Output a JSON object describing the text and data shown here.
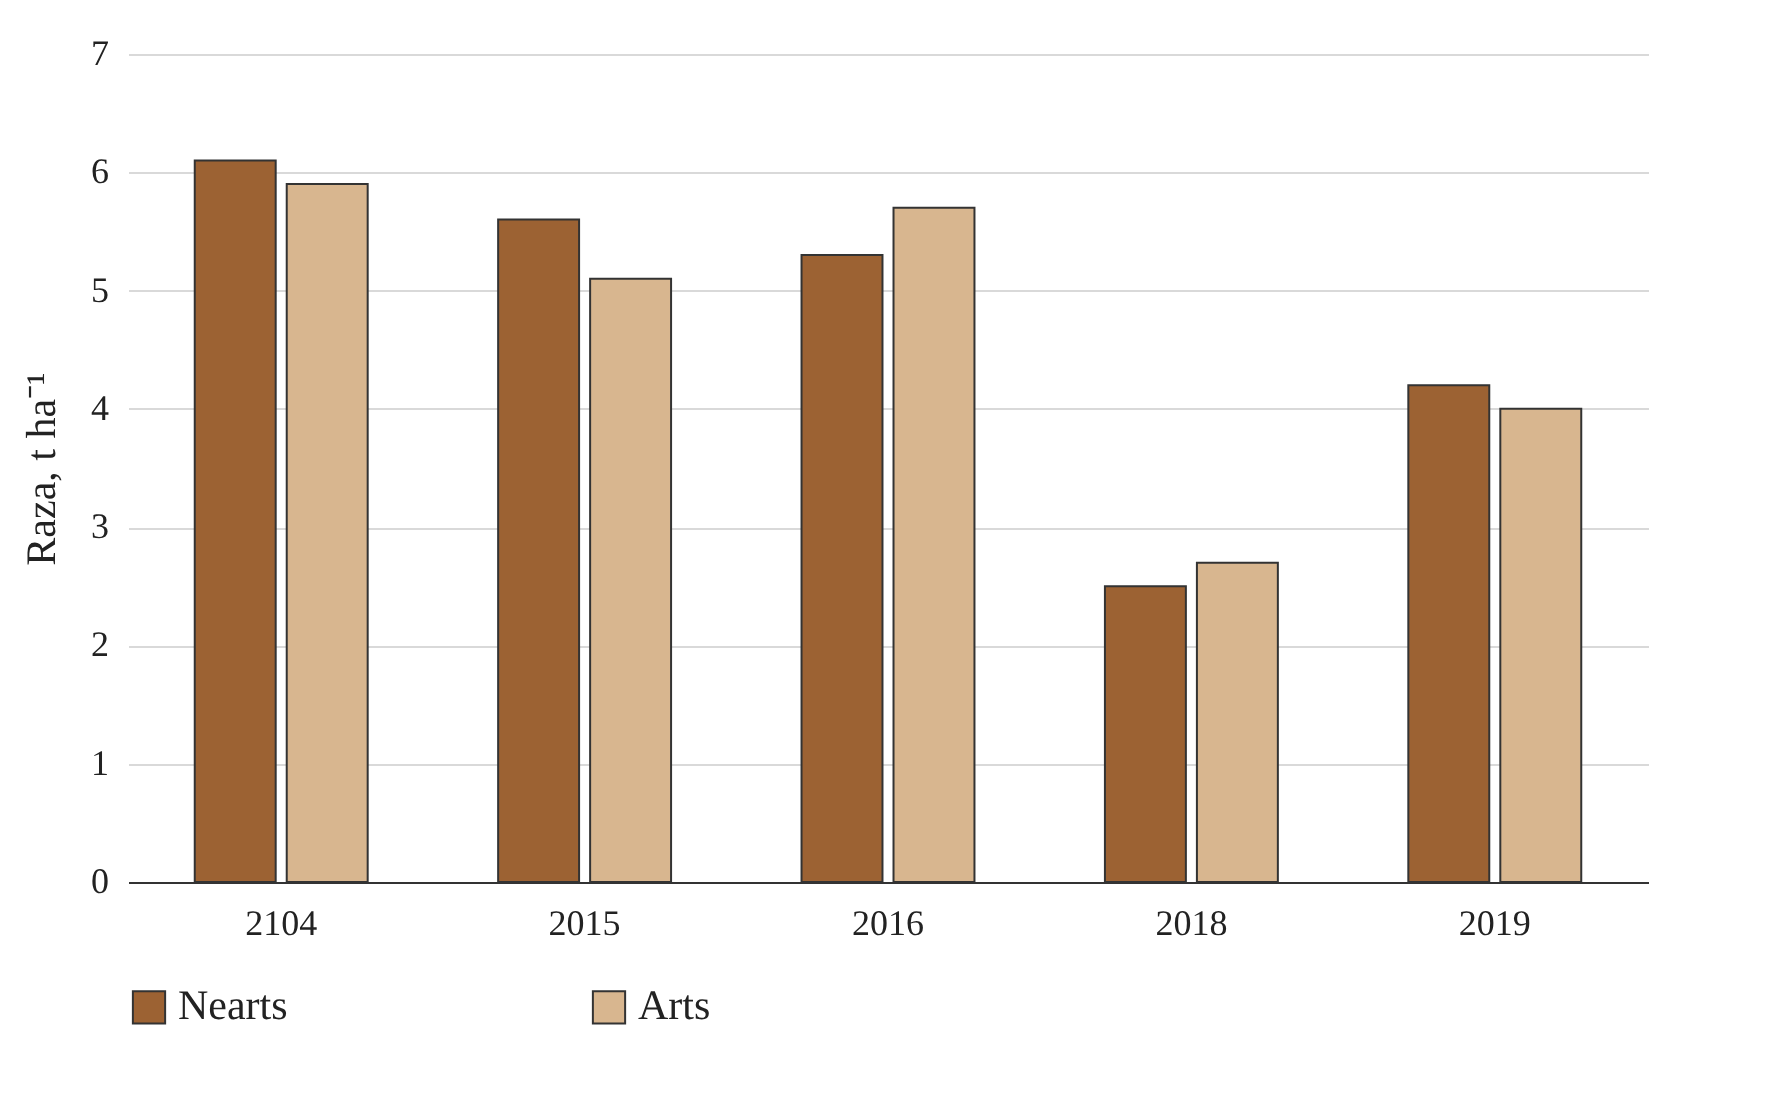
{
  "chart_data": {
    "type": "bar",
    "ylabel": "Raza, t ha⁻¹",
    "categories": [
      "2104",
      "2015",
      "2016",
      "2018",
      "2019"
    ],
    "series": [
      {
        "name": "Nearts",
        "color": "#9c6233",
        "values": [
          6.1,
          5.6,
          5.3,
          2.5,
          4.2
        ]
      },
      {
        "name": "Arts",
        "color": "#d8b68f",
        "values": [
          5.9,
          5.1,
          5.7,
          2.7,
          4.0
        ]
      }
    ],
    "ylim": [
      0,
      7
    ],
    "yticks": [
      0,
      1,
      2,
      3,
      4,
      5,
      6,
      7
    ],
    "grid": "y",
    "legend": "bottom"
  }
}
